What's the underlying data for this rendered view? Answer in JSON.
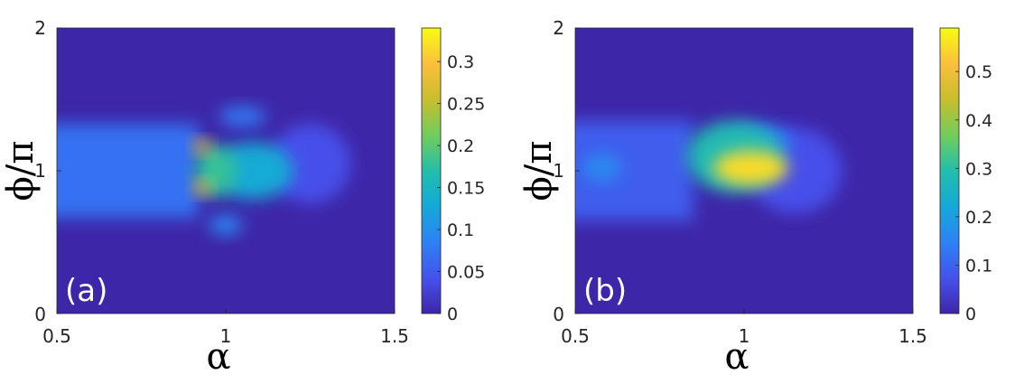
{
  "chart_data": [
    {
      "type": "heatmap",
      "panel_label": "(a)",
      "xlabel": "α",
      "ylabel": "ϕ/π",
      "xlim": [
        0.5,
        1.5
      ],
      "ylim": [
        0,
        2
      ],
      "xticks": [
        "0.5",
        "1",
        "1.5"
      ],
      "yticks": [
        "0",
        "1",
        "2"
      ],
      "colorbar": {
        "min": 0,
        "max": 0.34,
        "ticks": [
          "0",
          "0.05",
          "0.1",
          "0.15",
          "0.2",
          "0.25",
          "0.3"
        ]
      },
      "features": [
        {
          "shape": "band",
          "x0": 0.5,
          "x1": 0.92,
          "y": 1.0,
          "halfwidth": 0.33,
          "value": 0.07
        },
        {
          "shape": "blob",
          "x": 0.97,
          "y": 1.0,
          "sx": 0.06,
          "sy": 0.18,
          "value": 0.18
        },
        {
          "shape": "blob",
          "x": 0.93,
          "y": 1.17,
          "sx": 0.025,
          "sy": 0.05,
          "value": 0.3
        },
        {
          "shape": "blob",
          "x": 0.93,
          "y": 0.88,
          "sx": 0.025,
          "sy": 0.05,
          "value": 0.3
        },
        {
          "shape": "blob",
          "x": 1.08,
          "y": 1.0,
          "sx": 0.12,
          "sy": 0.2,
          "value": 0.13
        },
        {
          "shape": "blob",
          "x": 1.05,
          "y": 1.38,
          "sx": 0.07,
          "sy": 0.07,
          "value": 0.08
        },
        {
          "shape": "blob",
          "x": 1.0,
          "y": 0.62,
          "sx": 0.05,
          "sy": 0.07,
          "value": 0.09
        },
        {
          "shape": "blob",
          "x": 1.25,
          "y": 1.05,
          "sx": 0.12,
          "sy": 0.28,
          "value": 0.04
        }
      ]
    },
    {
      "type": "heatmap",
      "panel_label": "(b)",
      "xlabel": "α",
      "ylabel": "ϕ/π",
      "xlim": [
        0.5,
        1.5
      ],
      "ylim": [
        0,
        2
      ],
      "xticks": [
        "0.5",
        "1",
        "1.5"
      ],
      "yticks": [
        "0",
        "1",
        "2"
      ],
      "colorbar": {
        "min": 0,
        "max": 0.59,
        "ticks": [
          "0",
          "0.1",
          "0.2",
          "0.3",
          "0.4",
          "0.5"
        ]
      },
      "features": [
        {
          "shape": "band",
          "x0": 0.5,
          "x1": 0.85,
          "y": 1.0,
          "halfwidth": 0.35,
          "value": 0.09
        },
        {
          "shape": "blob",
          "x": 0.58,
          "y": 1.02,
          "sx": 0.06,
          "sy": 0.1,
          "value": 0.16
        },
        {
          "shape": "blob",
          "x": 1.02,
          "y": 1.02,
          "sx": 0.11,
          "sy": 0.12,
          "value": 0.55
        },
        {
          "shape": "blob",
          "x": 0.97,
          "y": 1.1,
          "sx": 0.14,
          "sy": 0.25,
          "value": 0.28
        },
        {
          "shape": "blob",
          "x": 1.05,
          "y": 1.2,
          "sx": 0.09,
          "sy": 0.12,
          "value": 0.15
        },
        {
          "shape": "blob",
          "x": 1.15,
          "y": 1.0,
          "sx": 0.14,
          "sy": 0.3,
          "value": 0.07
        }
      ]
    }
  ]
}
